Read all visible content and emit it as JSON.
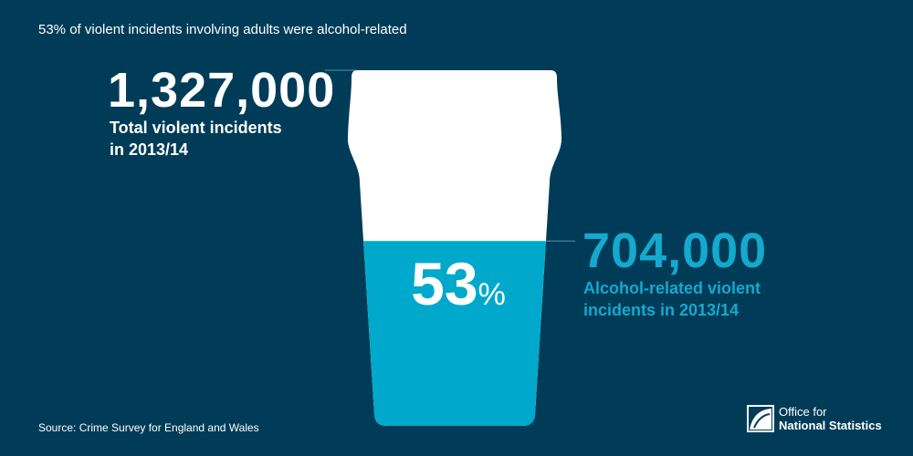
{
  "title": "53% of violent incidents involving adults were alcohol-related",
  "colors": {
    "background": "#003c57",
    "glass": "#ffffff",
    "fill": "#00a9cc",
    "accent_text": "#14a9cf"
  },
  "chart_data": {
    "type": "pictogram",
    "total": {
      "value": 1327000,
      "value_label": "1,327,000",
      "label_line1": "Total violent incidents",
      "label_line2": "in 2013/14"
    },
    "alcohol_related": {
      "value": 704000,
      "value_label": "704,000",
      "label_line1": "Alcohol-related violent",
      "label_line2": "incidents in 2013/14"
    },
    "percent": 53,
    "percent_number": "53",
    "percent_sign": "%"
  },
  "source": "Source: Crime Survey for England and Wales",
  "logo": {
    "line1": "Office for",
    "line2": "National Statistics"
  }
}
